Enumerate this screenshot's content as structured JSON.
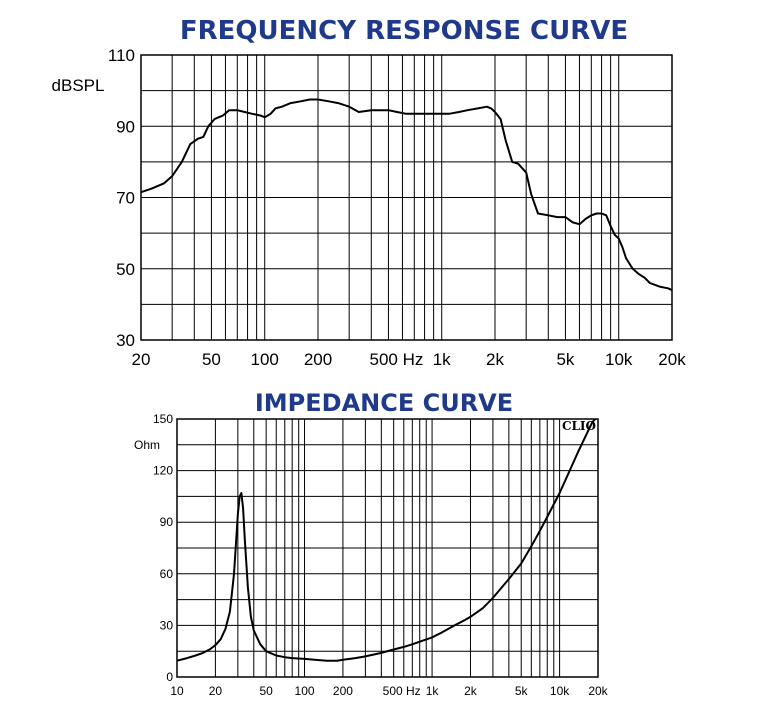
{
  "chart_data": [
    {
      "type": "line",
      "title": "FREQUENCY RESPONSE CURVE",
      "xlabel": "",
      "ylabel": "dBSPL",
      "x_scale": "log",
      "xlim": [
        20,
        20000
      ],
      "ylim": [
        30,
        110
      ],
      "grid": true,
      "y_ticks": [
        30,
        50,
        70,
        90,
        110
      ],
      "x_tick_labels": [
        {
          "x": 20,
          "label": "20"
        },
        {
          "x": 50,
          "label": "50"
        },
        {
          "x": 100,
          "label": "100"
        },
        {
          "x": 200,
          "label": "200"
        },
        {
          "x": 500,
          "label": "500 Hz"
        },
        {
          "x": 1000,
          "label": "1k"
        },
        {
          "x": 2000,
          "label": "2k"
        },
        {
          "x": 5000,
          "label": "5k"
        },
        {
          "x": 10000,
          "label": "10k"
        },
        {
          "x": 20000,
          "label": "20k"
        }
      ],
      "series": [
        {
          "x": [
            20,
            23,
            27,
            30,
            34,
            38,
            42,
            45,
            48,
            52,
            58,
            63,
            70,
            77,
            85,
            95,
            100,
            108,
            115,
            125,
            140,
            160,
            180,
            200,
            230,
            260,
            300,
            340,
            400,
            450,
            500,
            560,
            630,
            700,
            800,
            900,
            1000,
            1100,
            1250,
            1400,
            1600,
            1800,
            1900,
            2000,
            2150,
            2300,
            2500,
            2700,
            3000,
            3200,
            3500,
            4000,
            4500,
            5000,
            5500,
            6000,
            6500,
            7000,
            7500,
            8000,
            8500,
            9000,
            9500,
            10000,
            10500,
            11000,
            12000,
            13000,
            14000,
            15000,
            17000,
            19000,
            20000
          ],
          "y": [
            71.5,
            72.5,
            74,
            76,
            80,
            85,
            86.5,
            87,
            90,
            92,
            93,
            94.5,
            94.5,
            94,
            93.5,
            93,
            92.5,
            93.5,
            95,
            95.5,
            96.5,
            97,
            97.5,
            97.5,
            97,
            96.5,
            95.5,
            94,
            94.5,
            94.5,
            94.5,
            94,
            93.5,
            93.5,
            93.5,
            93.5,
            93.5,
            93.5,
            94,
            94.5,
            95,
            95.5,
            95,
            94,
            92,
            86,
            80,
            79.5,
            77,
            71,
            65.5,
            65,
            64.5,
            64.5,
            63,
            62.5,
            64,
            65,
            65.5,
            65.5,
            65,
            62,
            59.5,
            58.5,
            56,
            53,
            50,
            48.5,
            47.5,
            46,
            45,
            44.5,
            44
          ]
        }
      ]
    },
    {
      "type": "line",
      "title": "IMPEDANCE CURVE",
      "xlabel": "",
      "ylabel": "Ohm",
      "x_scale": "log",
      "xlim": [
        10,
        20000
      ],
      "ylim": [
        0,
        150
      ],
      "grid": true,
      "annotation": "CLIO",
      "y_ticks": [
        0,
        30,
        60,
        90,
        120,
        150
      ],
      "x_tick_labels": [
        {
          "x": 10,
          "label": "10"
        },
        {
          "x": 20,
          "label": "20"
        },
        {
          "x": 50,
          "label": "50"
        },
        {
          "x": 100,
          "label": "100"
        },
        {
          "x": 200,
          "label": "200"
        },
        {
          "x": 500,
          "label": "500 Hz"
        },
        {
          "x": 1000,
          "label": "1k"
        },
        {
          "x": 2000,
          "label": "2k"
        },
        {
          "x": 5000,
          "label": "5k"
        },
        {
          "x": 10000,
          "label": "10k"
        },
        {
          "x": 20000,
          "label": "20k"
        }
      ],
      "series": [
        {
          "x": [
            10,
            12,
            14,
            16,
            18,
            20,
            22,
            24,
            26,
            28,
            30,
            31,
            32,
            33,
            34,
            36,
            38,
            40,
            45,
            50,
            60,
            70,
            80,
            100,
            120,
            150,
            180,
            200,
            250,
            300,
            400,
            500,
            600,
            700,
            800,
            1000,
            1200,
            1500,
            1800,
            2000,
            2500,
            3000,
            4000,
            5000,
            6000,
            7000,
            8000,
            10000,
            12000,
            14000,
            16000,
            18000,
            19000
          ],
          "y": [
            9.5,
            11,
            12.5,
            14,
            16,
            18.5,
            22,
            28,
            38,
            60,
            95,
            105,
            107,
            98,
            80,
            52,
            35,
            27,
            19,
            15,
            12.5,
            11.5,
            11,
            10.5,
            10,
            9.5,
            9.5,
            10,
            11,
            12,
            14,
            16,
            17.5,
            19,
            20.5,
            23,
            26,
            30,
            33,
            35,
            40,
            46,
            57,
            66,
            76,
            85,
            93,
            107,
            120,
            131,
            140,
            148,
            152
          ]
        }
      ]
    }
  ]
}
